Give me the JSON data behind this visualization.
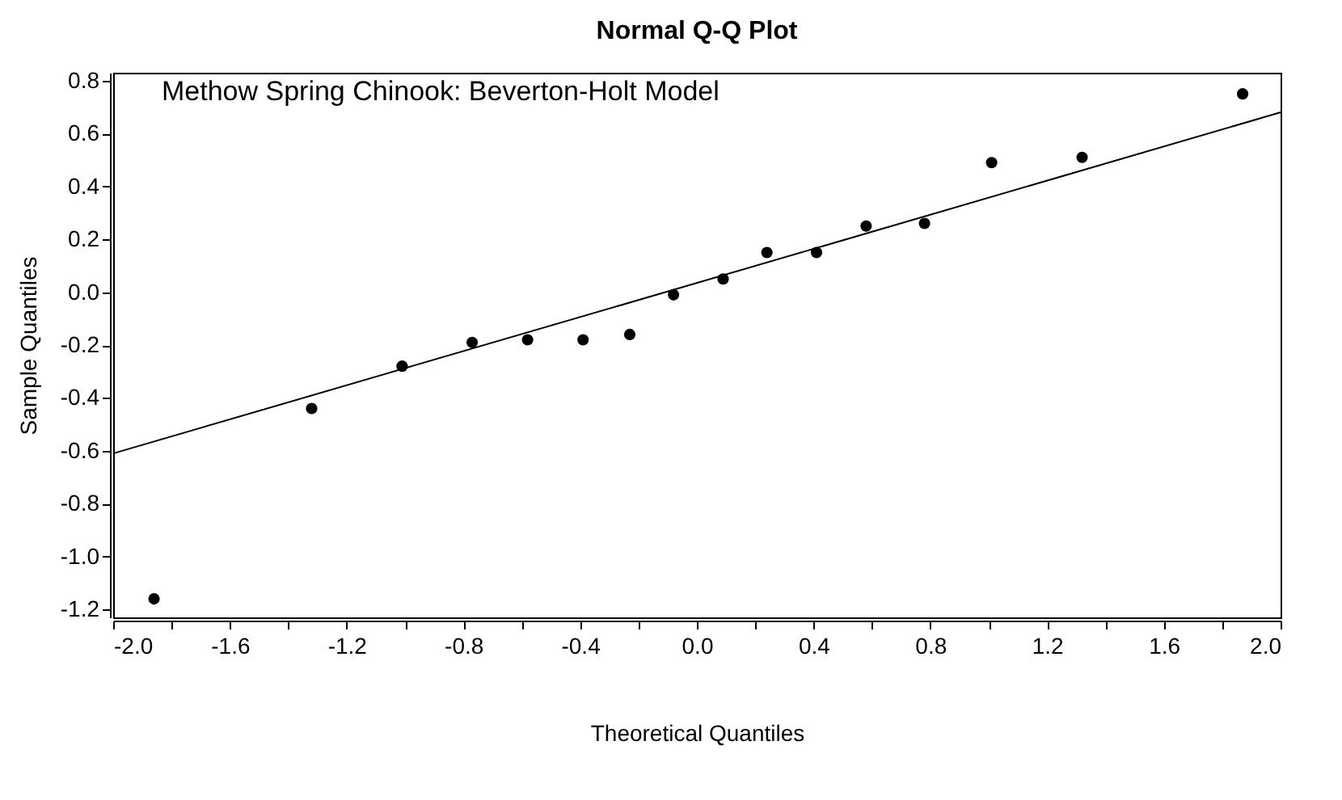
{
  "chart_data": {
    "type": "scatter",
    "title": "Normal Q-Q Plot",
    "xlabel": "Theoretical Quantiles",
    "ylabel": "Sample Quantiles",
    "annotations": [
      "Methow Spring Chinook: Beverton-Holt Model"
    ],
    "grid": false,
    "series": [
      {
        "marker": "circle",
        "color": "#000000",
        "x": [
          -1.86,
          -1.32,
          -1.01,
          -0.77,
          -0.58,
          -0.39,
          -0.23,
          -0.08,
          0.09,
          0.24,
          0.41,
          0.58,
          0.78,
          1.01,
          1.32,
          1.87
        ],
        "values": [
          -1.16,
          -0.44,
          -0.28,
          -0.19,
          -0.18,
          -0.18,
          -0.16,
          -0.01,
          0.05,
          0.15,
          0.15,
          0.25,
          0.26,
          0.49,
          0.51,
          0.75
        ]
      },
      {
        "type": "line",
        "color": "#000000",
        "x": [
          -2.0,
          2.0
        ],
        "values": [
          -0.61,
          0.68
        ]
      }
    ],
    "xlim": [
      -2.0,
      2.0
    ],
    "xticks": [
      {
        "value": -2.0,
        "label": "-2.0"
      },
      {
        "value": -1.8,
        "label": null
      },
      {
        "value": -1.6,
        "label": "-1.6"
      },
      {
        "value": -1.4,
        "label": null
      },
      {
        "value": -1.2,
        "label": "-1.2"
      },
      {
        "value": -1.0,
        "label": null
      },
      {
        "value": -0.8,
        "label": "-0.8"
      },
      {
        "value": -0.6,
        "label": null
      },
      {
        "value": -0.4,
        "label": "-0.4"
      },
      {
        "value": -0.2,
        "label": null
      },
      {
        "value": 0,
        "label": "0.0"
      },
      {
        "value": 0.2,
        "label": null
      },
      {
        "value": 0.4,
        "label": "0.4"
      },
      {
        "value": 0.6,
        "label": null
      },
      {
        "value": 0.8,
        "label": "0.8"
      },
      {
        "value": 1.0,
        "label": null
      },
      {
        "value": 1.2,
        "label": "1.2"
      },
      {
        "value": 1.4,
        "label": null
      },
      {
        "value": 1.6,
        "label": "1.6"
      },
      {
        "value": 1.8,
        "label": null
      },
      {
        "value": 2.0,
        "label": "2.0"
      }
    ],
    "ylim": [
      -1.23,
      0.83
    ],
    "yticks": [
      {
        "value": -1.2,
        "label": "-1.2"
      },
      {
        "value": -1.0,
        "label": "-1.0"
      },
      {
        "value": -0.8,
        "label": "-0.8"
      },
      {
        "value": -0.6,
        "label": "-0.6"
      },
      {
        "value": -0.4,
        "label": "-0.4"
      },
      {
        "value": -0.2,
        "label": "-0.2"
      },
      {
        "value": 0,
        "label": "0.0"
      },
      {
        "value": 0.2,
        "label": "0.2"
      },
      {
        "value": 0.4,
        "label": "0.4"
      },
      {
        "value": 0.6,
        "label": "0.6"
      },
      {
        "value": 0.8,
        "label": "0.8"
      }
    ]
  }
}
